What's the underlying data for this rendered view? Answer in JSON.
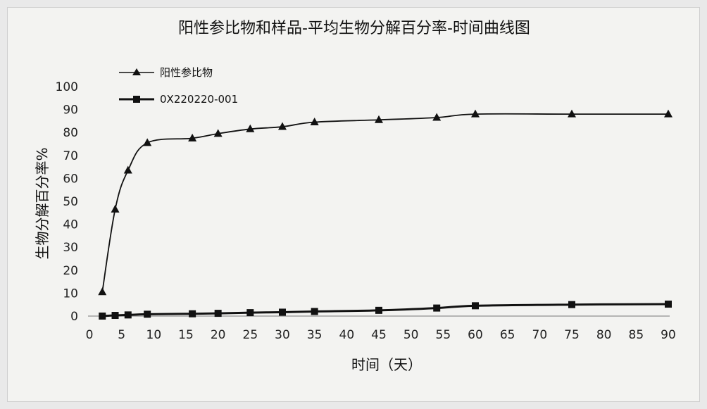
{
  "chart_data": {
    "type": "line",
    "title": "阳性参比物和样品-平均生物分解百分率-时间曲线图",
    "xlabel": "时间（天）",
    "ylabel": "生物分解百分率%",
    "xlim": [
      0,
      90
    ],
    "ylim": [
      0,
      100
    ],
    "xticks": [
      "0",
      "5",
      "10",
      "15",
      "20",
      "25",
      "30",
      "35",
      "40",
      "45",
      "50",
      "55",
      "60",
      "65",
      "70",
      "75",
      "80",
      "85",
      "90"
    ],
    "yticks": [
      "0",
      "10",
      "20",
      "30",
      "40",
      "50",
      "60",
      "70",
      "80",
      "90",
      "100"
    ],
    "grid": false,
    "legend_position": "top-left",
    "series": [
      {
        "name": "阳性参比物",
        "marker": "triangle",
        "color": "#111111",
        "x": [
          2,
          4,
          6,
          9,
          16,
          20,
          25,
          30,
          35,
          45,
          54,
          60,
          75,
          90
        ],
        "y": [
          10.5,
          46.5,
          63.5,
          75.5,
          77.5,
          79.5,
          81.5,
          82.5,
          84.5,
          85.5,
          86.5,
          88,
          88,
          88
        ]
      },
      {
        "name": "0X220220-001",
        "marker": "square",
        "color": "#111111",
        "x": [
          2,
          4,
          6,
          9,
          16,
          20,
          25,
          30,
          35,
          45,
          54,
          60,
          75,
          90
        ],
        "y": [
          0,
          0.3,
          0.5,
          0.8,
          1.0,
          1.2,
          1.5,
          1.7,
          2.0,
          2.5,
          3.5,
          4.5,
          5.0,
          5.2
        ]
      }
    ]
  }
}
